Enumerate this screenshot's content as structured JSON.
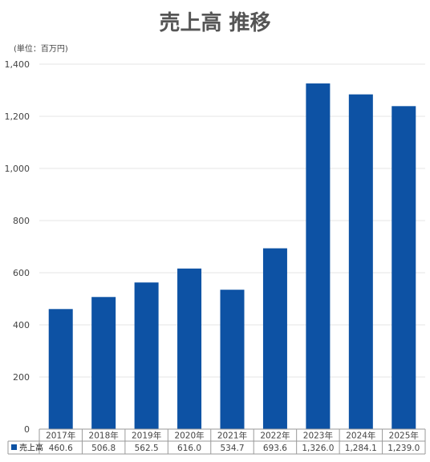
{
  "chart_data": {
    "type": "bar",
    "title": "売上高 推移",
    "unit_label": "(単位：百万円)",
    "categories": [
      "2017年",
      "2018年",
      "2019年",
      "2020年",
      "2021年",
      "2022年",
      "2023年",
      "2024年",
      "2025年"
    ],
    "series": [
      {
        "name": "売上高",
        "values": [
          460.6,
          506.8,
          562.5,
          616.0,
          534.7,
          693.6,
          1326.0,
          1284.1,
          1239.0
        ],
        "value_labels": [
          "460.6",
          "506.8",
          "562.5",
          "616.0",
          "534.7",
          "693.6",
          "1,326.0",
          "1,284.1",
          "1,239.0"
        ],
        "color": "#0d52a4"
      }
    ],
    "ylim": [
      0,
      1400
    ],
    "yticks": [
      0,
      200,
      400,
      600,
      800,
      1000,
      1200,
      1400
    ],
    "ytick_labels": [
      "0",
      "200",
      "400",
      "600",
      "800",
      "1,000",
      "1,200",
      "1,400"
    ],
    "grid": true,
    "legend": "data-table"
  }
}
